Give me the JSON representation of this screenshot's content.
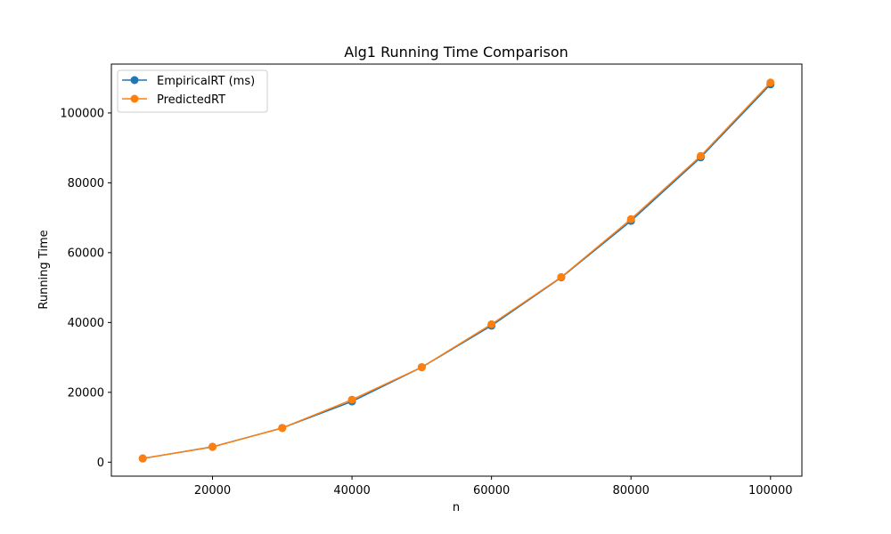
{
  "chart_data": {
    "type": "line",
    "title": "Alg1 Running Time Comparison",
    "xlabel": "n",
    "ylabel": "Running Time",
    "xlim": [
      5500,
      104500
    ],
    "ylim": [
      -4000,
      114000
    ],
    "xticks": [
      20000,
      40000,
      60000,
      80000,
      100000
    ],
    "yticks": [
      0,
      20000,
      40000,
      60000,
      80000,
      100000
    ],
    "grid": false,
    "legend_position": "top-left",
    "x": [
      10000,
      20000,
      30000,
      40000,
      50000,
      60000,
      70000,
      80000,
      90000,
      100000
    ],
    "series": [
      {
        "name": "EmpiricalRT (ms)",
        "color": "#1f77b4",
        "marker": "circle",
        "values": [
          1050,
          4400,
          9800,
          17400,
          27200,
          39100,
          52900,
          69100,
          87300,
          108200
        ]
      },
      {
        "name": "PredictedRT",
        "color": "#ff7f0e",
        "marker": "circle",
        "values": [
          1090,
          4360,
          9800,
          17900,
          27200,
          39500,
          53000,
          69600,
          87700,
          108700
        ]
      }
    ]
  }
}
